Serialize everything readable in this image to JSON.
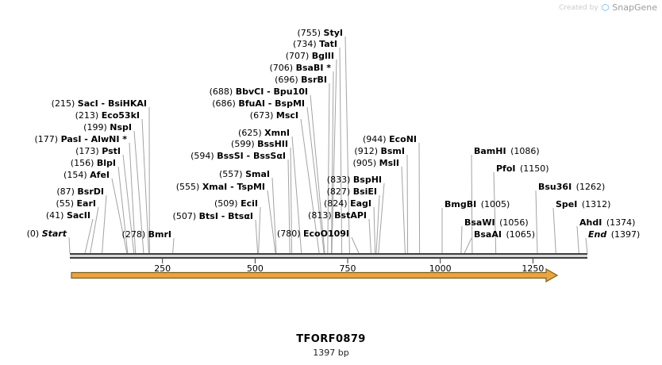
{
  "watermark": {
    "created_by": "Created by",
    "brand": "SnapGene"
  },
  "title": {
    "name": "TFORF0879",
    "length": "1397 bp"
  },
  "ruler": {
    "min": 0,
    "max": 1397,
    "ticks": [
      250,
      500,
      750,
      1000,
      1250
    ]
  },
  "feature": {
    "color": "#ECA440"
  },
  "sites": [
    {
      "bp": 215,
      "pos": "(215)",
      "name": "SacI - BsiHKAI",
      "order": "pn"
    },
    {
      "bp": 213,
      "pos": "(213)",
      "name": "Eco53kI",
      "order": "pn"
    },
    {
      "bp": 199,
      "pos": "(199)",
      "name": "NspI",
      "order": "pn"
    },
    {
      "bp": 177,
      "pos": "(177)",
      "name": "PasI - AlwNI *",
      "order": "pn"
    },
    {
      "bp": 173,
      "pos": "(173)",
      "name": "PstI",
      "order": "pn"
    },
    {
      "bp": 156,
      "pos": "(156)",
      "name": "BlpI",
      "order": "pn"
    },
    {
      "bp": 154,
      "pos": "(154)",
      "name": "AfeI",
      "order": "pn"
    },
    {
      "bp": 87,
      "pos": "(87)",
      "name": "BsrDI",
      "order": "pn"
    },
    {
      "bp": 55,
      "pos": "(55)",
      "name": "EarI",
      "order": "pn"
    },
    {
      "bp": 41,
      "pos": "(41)",
      "name": "SacII",
      "order": "pn"
    },
    {
      "bp": 0,
      "pos": "(0)",
      "name": "Start",
      "order": "pn",
      "marker": true
    },
    {
      "bp": 625,
      "pos": "(625)",
      "name": "XmnI",
      "order": "pn"
    },
    {
      "bp": 599,
      "pos": "(599)",
      "name": "BssHII",
      "order": "pn"
    },
    {
      "bp": 594,
      "pos": "(594)",
      "name": "BssSI - BssSαI",
      "order": "pn"
    },
    {
      "bp": 557,
      "pos": "(557)",
      "name": "SmaI",
      "order": "pn"
    },
    {
      "bp": 555,
      "pos": "(555)",
      "name": "XmaI - TspMI",
      "order": "pn"
    },
    {
      "bp": 509,
      "pos": "(509)",
      "name": "EciI",
      "order": "pn"
    },
    {
      "bp": 507,
      "pos": "(507)",
      "name": "BtsI - BtsαI",
      "order": "pn"
    },
    {
      "bp": 278,
      "pos": "(278)",
      "name": "BmrI",
      "order": "pn"
    },
    {
      "bp": 755,
      "pos": "(755)",
      "name": "StyI",
      "order": "pn"
    },
    {
      "bp": 734,
      "pos": "(734)",
      "name": "TatI",
      "order": "pn"
    },
    {
      "bp": 707,
      "pos": "(707)",
      "name": "BglII",
      "order": "pn"
    },
    {
      "bp": 706,
      "pos": "(706)",
      "name": "BsaBI *",
      "order": "pn"
    },
    {
      "bp": 696,
      "pos": "(696)",
      "name": "BsrBI",
      "order": "pn"
    },
    {
      "bp": 688,
      "pos": "(688)",
      "name": "BbvCI - Bpu10I",
      "order": "pn"
    },
    {
      "bp": 686,
      "pos": "(686)",
      "name": "BfuAI - BspMI",
      "order": "pn"
    },
    {
      "bp": 673,
      "pos": "(673)",
      "name": "MscI",
      "order": "pn"
    },
    {
      "bp": 944,
      "pos": "(944)",
      "name": "EcoNI",
      "order": "pn"
    },
    {
      "bp": 912,
      "pos": "(912)",
      "name": "BsmI",
      "order": "pn"
    },
    {
      "bp": 905,
      "pos": "(905)",
      "name": "MslI",
      "order": "pn"
    },
    {
      "bp": 833,
      "pos": "(833)",
      "name": "BspHI",
      "order": "pn"
    },
    {
      "bp": 827,
      "pos": "(827)",
      "name": "BsiEI",
      "order": "pn"
    },
    {
      "bp": 824,
      "pos": "(824)",
      "name": "EagI",
      "order": "pn"
    },
    {
      "bp": 813,
      "pos": "(813)",
      "name": "BstAPI",
      "order": "pn"
    },
    {
      "bp": 780,
      "pos": "(780)",
      "name": "EcoO109I",
      "order": "pn"
    },
    {
      "bp": 1086,
      "pos": "(1086)",
      "name": "BamHI",
      "order": "np"
    },
    {
      "bp": 1150,
      "pos": "(1150)",
      "name": "PfoI",
      "order": "np"
    },
    {
      "bp": 1262,
      "pos": "(1262)",
      "name": "Bsu36I",
      "order": "np"
    },
    {
      "bp": 1312,
      "pos": "(1312)",
      "name": "SpeI",
      "order": "np"
    },
    {
      "bp": 1005,
      "pos": "(1005)",
      "name": "BmgBI",
      "order": "np"
    },
    {
      "bp": 1056,
      "pos": "(1056)",
      "name": "BsaWI",
      "order": "np"
    },
    {
      "bp": 1065,
      "pos": "(1065)",
      "name": "BsaAI",
      "order": "np"
    },
    {
      "bp": 1374,
      "pos": "(1374)",
      "name": "AhdI",
      "order": "np"
    },
    {
      "bp": 1397,
      "pos": "(1397)",
      "name": "End",
      "order": "np",
      "marker": true
    }
  ]
}
